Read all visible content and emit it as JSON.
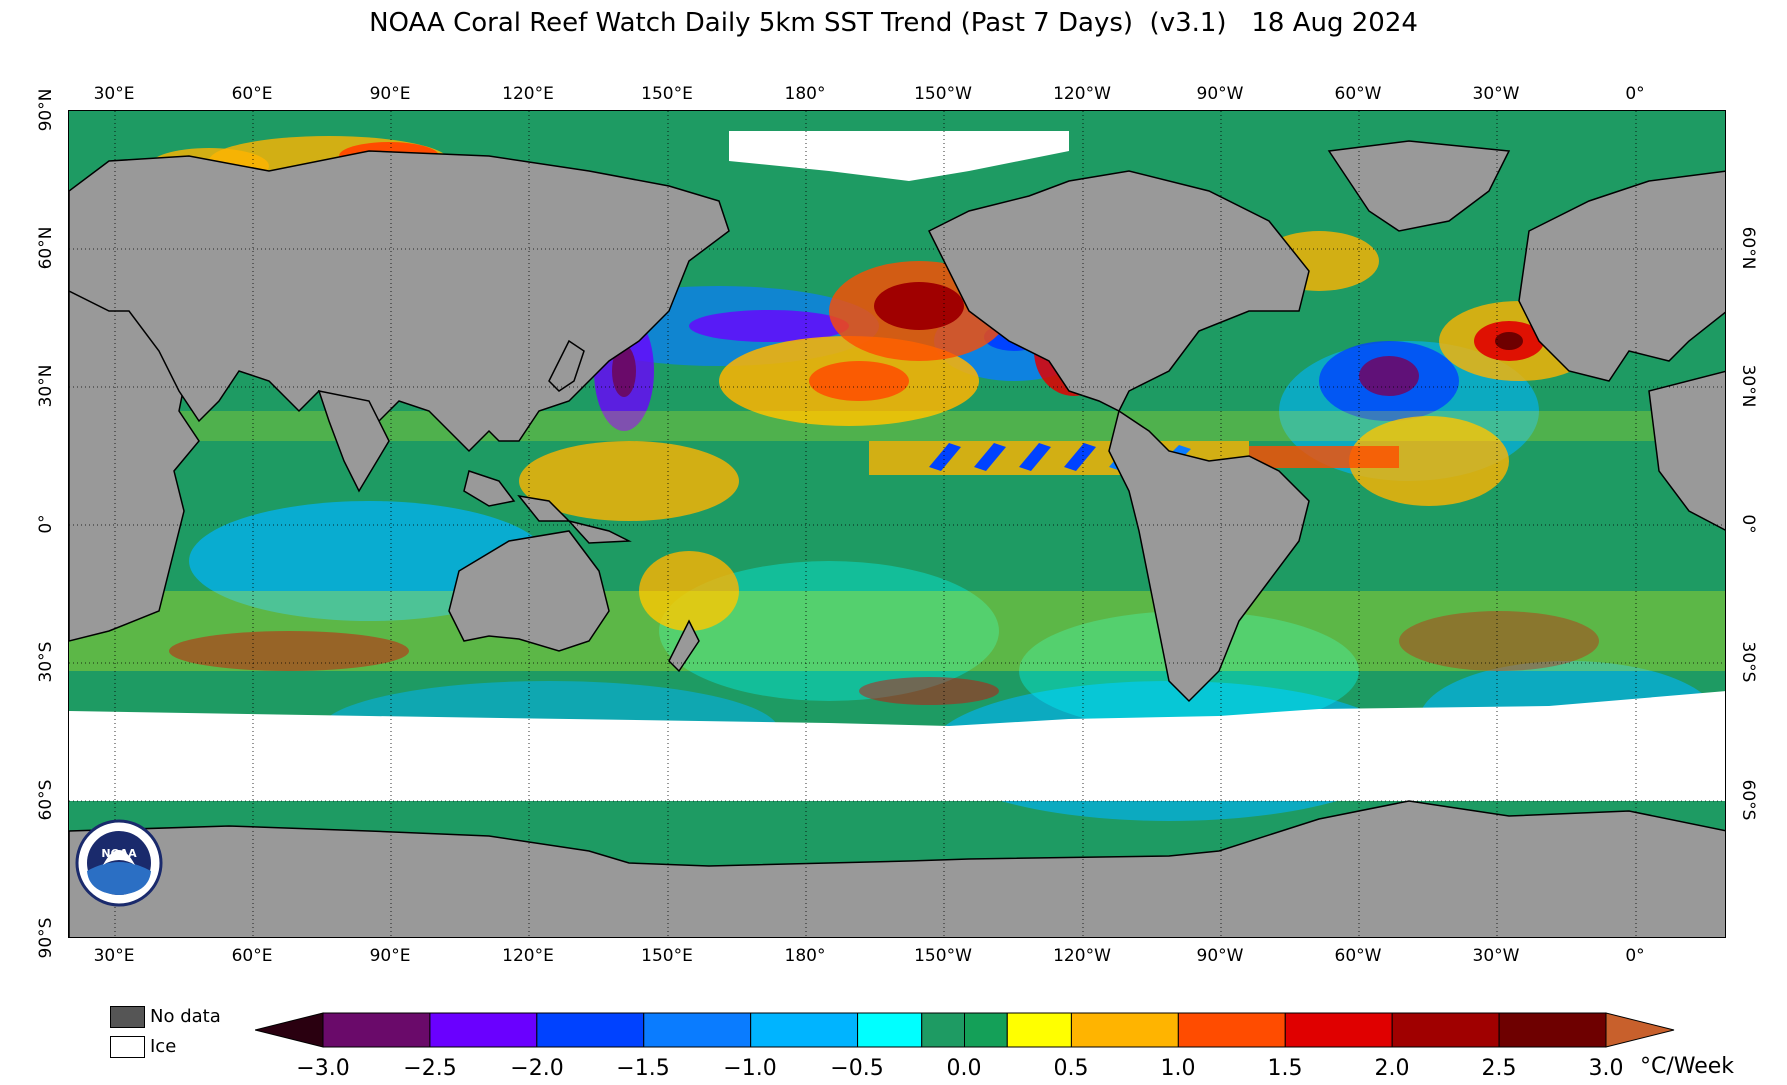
{
  "title": "NOAA Coral Reef Watch Daily 5km SST Trend (Past 7 Days)  (v3.1)   18 Aug 2024",
  "longitude_labels": [
    "30°E",
    "60°E",
    "90°E",
    "120°E",
    "150°E",
    "180°",
    "150°W",
    "120°W",
    "90°W",
    "60°W",
    "30°W",
    "0°"
  ],
  "latitude_labels_left": [
    "90°N",
    "60°N",
    "30°N",
    "0°",
    "30°S",
    "60°S",
    "90°S"
  ],
  "latitude_labels_right": [
    "60°N",
    "30°N",
    "0°",
    "30°S",
    "60°S"
  ],
  "legend": {
    "no_data_label": "No data",
    "no_data_color": "#555555",
    "ice_label": "Ice",
    "ice_color": "#ffffff"
  },
  "colorbar": {
    "tick_labels": [
      "−3.0",
      "−2.5",
      "−2.0",
      "−1.5",
      "−1.0",
      "−0.5",
      "0.0",
      "0.5",
      "1.0",
      "1.5",
      "2.0",
      "2.5",
      "3.0"
    ],
    "units": "°C/Week",
    "low_extension_color": "#2a0010",
    "high_extension_color": "#c8602c",
    "bins": [
      {
        "from": -3.0,
        "to": -2.5,
        "color": "#6a0a6a"
      },
      {
        "from": -2.5,
        "to": -2.0,
        "color": "#6a00ff"
      },
      {
        "from": -2.0,
        "to": -1.5,
        "color": "#0042ff"
      },
      {
        "from": -1.5,
        "to": -1.0,
        "color": "#0a7cff"
      },
      {
        "from": -1.0,
        "to": -0.5,
        "color": "#00b4ff"
      },
      {
        "from": -0.5,
        "to": -0.2,
        "color": "#00ffff"
      },
      {
        "from": -0.2,
        "to": 0.0,
        "color": "#1e9b63"
      },
      {
        "from": 0.0,
        "to": 0.2,
        "color": "#14a058"
      },
      {
        "from": 0.2,
        "to": 0.5,
        "color": "#ffff00"
      },
      {
        "from": 0.5,
        "to": 1.0,
        "color": "#ffb400"
      },
      {
        "from": 1.0,
        "to": 1.5,
        "color": "#ff4c00"
      },
      {
        "from": 1.5,
        "to": 2.0,
        "color": "#e00000"
      },
      {
        "from": 2.0,
        "to": 2.5,
        "color": "#a00000"
      },
      {
        "from": 2.5,
        "to": 3.0,
        "color": "#6e0000"
      }
    ]
  },
  "colors": {
    "land": "#999999",
    "ice": "#ffffff",
    "ocean_base": "#1e9b63"
  },
  "logo_text": "NOAA"
}
